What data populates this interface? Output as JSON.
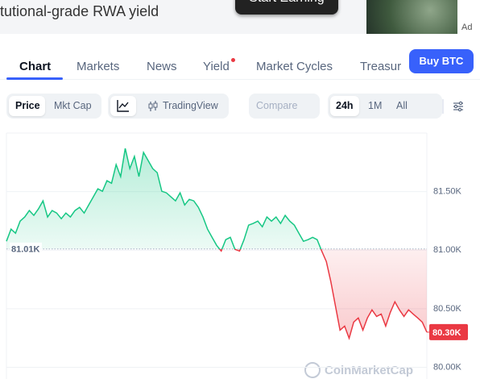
{
  "banner": {
    "text": "tutional-grade RWA yield",
    "button": "Start Earning",
    "ad": "Ad"
  },
  "tabs": [
    "Chart",
    "Markets",
    "News",
    "Yield",
    "Market Cycles",
    "Treasur"
  ],
  "buy_button": "Buy BTC",
  "toolbar": {
    "price": "Price",
    "mkt_cap": "Mkt Cap",
    "trading_view": "TradingView",
    "compare": "Compare",
    "ranges": [
      "24h",
      "1M",
      "All"
    ]
  },
  "chart_data": {
    "type": "line",
    "values": [
      81076,
      81179,
      81145,
      81248,
      81283,
      81338,
      81297,
      81352,
      81421,
      81283,
      81338,
      81317,
      81269,
      81317,
      81283,
      81338,
      81366,
      81317,
      81386,
      81455,
      81524,
      81503,
      81593,
      81572,
      81731,
      81628,
      81869,
      81697,
      81800,
      81628,
      81835,
      81766,
      81697,
      81662,
      81503,
      81490,
      81455,
      81421,
      81490,
      81386,
      81434,
      81421,
      81366,
      81283,
      81179,
      81110,
      81041,
      80993,
      81090,
      81110,
      81007,
      80993,
      81090,
      81214,
      81228,
      81248,
      81200,
      81283,
      81248,
      81283,
      81228,
      81297,
      81248,
      81214,
      81145,
      81076,
      81090,
      81110,
      81090,
      80993,
      80903,
      80731,
      80524,
      80317,
      80352,
      80248,
      80386,
      80421,
      80317,
      80421,
      80490,
      80434,
      80455,
      80352,
      80469,
      80559,
      80490,
      80434,
      80490,
      80455,
      80421,
      80386,
      80300
    ],
    "ylim": [
      79900,
      82000
    ],
    "yticks": [
      {
        "value": 80000,
        "label": "80.00K"
      },
      {
        "value": 80500,
        "label": "80.50K"
      },
      {
        "value": 81000,
        "label": "81.00K"
      },
      {
        "value": 81500,
        "label": "81.50K"
      }
    ],
    "reference": {
      "value": 81010,
      "label": "81.01K"
    },
    "current": {
      "value": 80300,
      "label": "80.30K"
    },
    "colors": {
      "up": "#16c784",
      "down": "#ea3943"
    },
    "grid": true,
    "watermark": "CoinMarketCap"
  }
}
